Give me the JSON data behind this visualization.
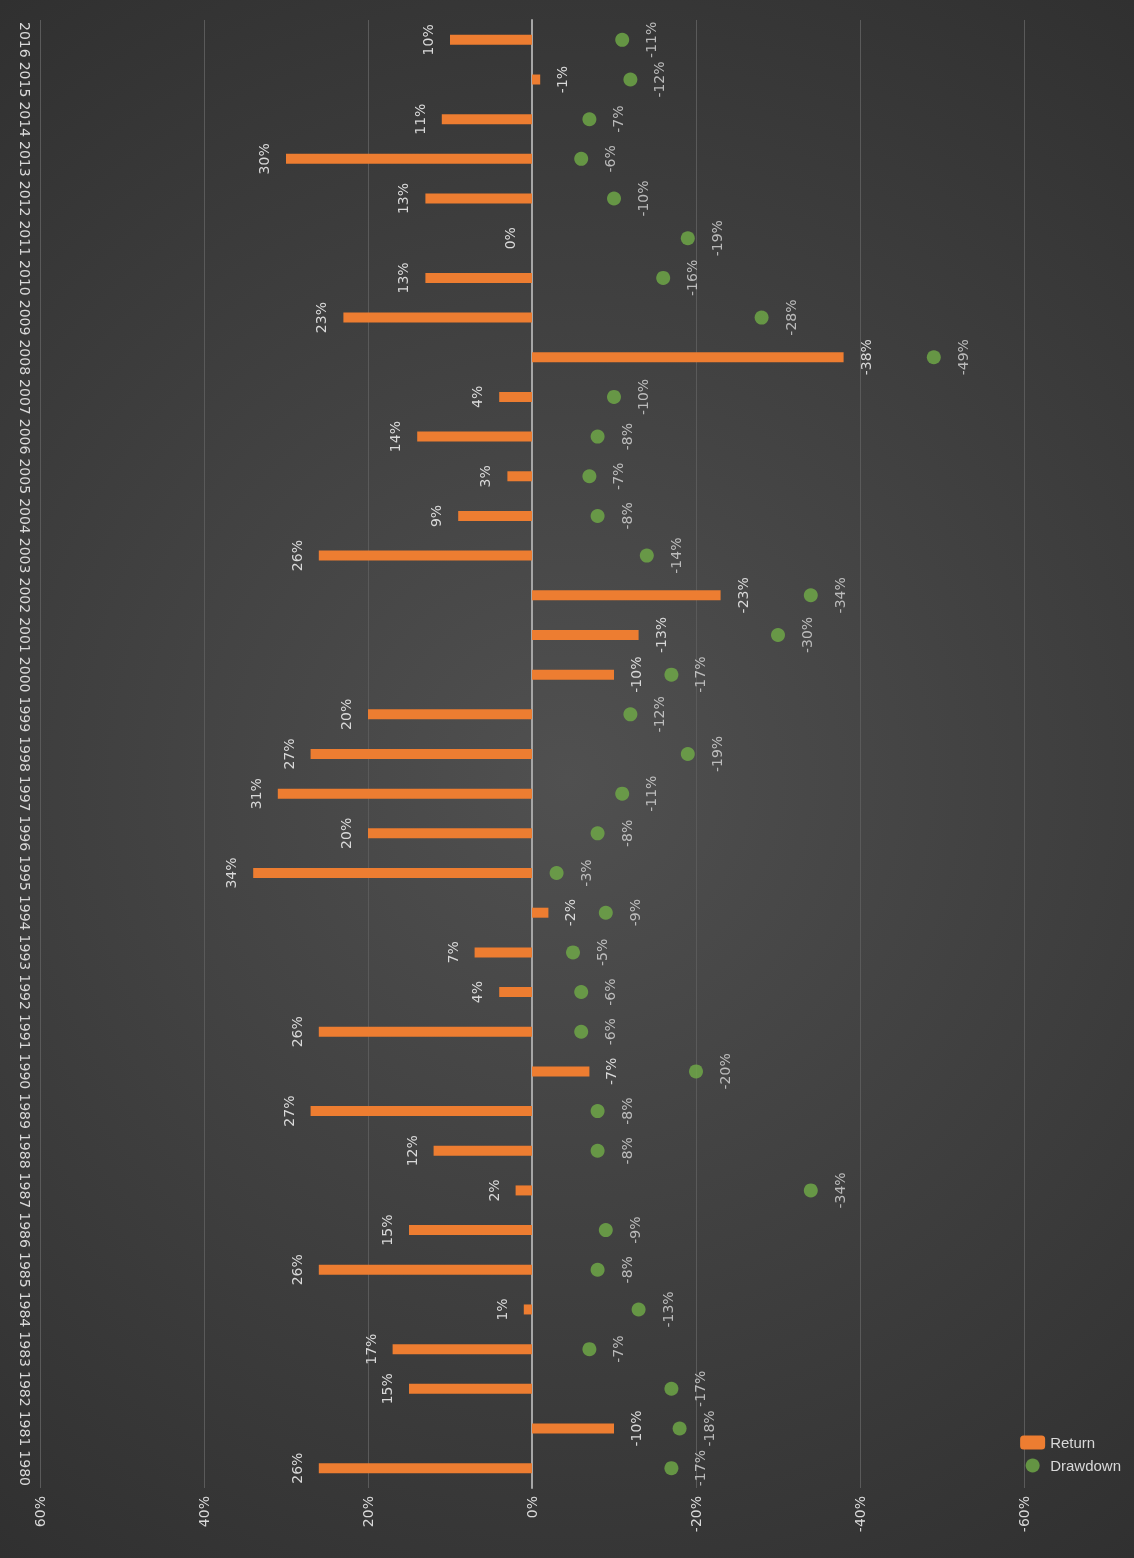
{
  "chart_data": {
    "type": "bar",
    "orientation": "horizontal",
    "categories": [
      "2016",
      "2015",
      "2014",
      "2013",
      "2012",
      "2011",
      "2010",
      "2009",
      "2008",
      "2007",
      "2006",
      "2005",
      "2004",
      "2003",
      "2002",
      "2001",
      "2000",
      "1999",
      "1998",
      "1997",
      "1996",
      "1995",
      "1994",
      "1993",
      "1992",
      "1991",
      "1990",
      "1989",
      "1988",
      "1987",
      "1986",
      "1985",
      "1984",
      "1983",
      "1982",
      "1981",
      "1980"
    ],
    "series": [
      {
        "name": "Return",
        "type": "bar",
        "color": "#ed7d31",
        "values": [
          10,
          -1,
          11,
          30,
          13,
          0,
          13,
          23,
          -38,
          4,
          14,
          3,
          9,
          26,
          -23,
          -13,
          -10,
          20,
          27,
          31,
          20,
          34,
          -2,
          7,
          4,
          26,
          -7,
          27,
          12,
          2,
          15,
          26,
          1,
          17,
          15,
          -10,
          26
        ],
        "value_labels": [
          "10%",
          "-1%",
          "11%",
          "30%",
          "13%",
          "0%",
          "13%",
          "23%",
          "-38%",
          "4%",
          "14%",
          "3%",
          "9%",
          "26%",
          "-23%",
          "-13%",
          "-10%",
          "20%",
          "27%",
          "31%",
          "20%",
          "34%",
          "-2%",
          "7%",
          "4%",
          "26%",
          "-7%",
          "27%",
          "12%",
          "2%",
          "15%",
          "26%",
          "1%",
          "17%",
          "15%",
          "-10%",
          "26%"
        ]
      },
      {
        "name": "Drawdown",
        "type": "scatter",
        "marker": "circle",
        "color": "#70ad47",
        "values": [
          -11,
          -12,
          -7,
          -6,
          -10,
          -19,
          -16,
          -28,
          -49,
          -10,
          -8,
          -7,
          -8,
          -14,
          -34,
          -30,
          -17,
          -12,
          -19,
          -11,
          -8,
          -3,
          -9,
          -5,
          -6,
          -6,
          -20,
          -8,
          -8,
          -34,
          -9,
          -8,
          -13,
          -7,
          -17,
          -18,
          -17
        ],
        "value_labels": [
          "-11%",
          "-12%",
          "-7%",
          "-6%",
          "-10%",
          "-19%",
          "-16%",
          "-28%",
          "-49%",
          "-10%",
          "-8%",
          "-7%",
          "-8%",
          "-14%",
          "-34%",
          "-30%",
          "-17%",
          "-12%",
          "-19%",
          "-11%",
          "-8%",
          "-3%",
          "-9%",
          "-5%",
          "-6%",
          "-6%",
          "-20%",
          "-8%",
          "-8%",
          "-34%",
          "-9%",
          "-8%",
          "-13%",
          "-7%",
          "-17%",
          "-18%",
          "-17%"
        ]
      }
    ],
    "xlim": [
      60,
      -60
    ],
    "xticks": [
      {
        "value": 60,
        "label": "60%"
      },
      {
        "value": 40,
        "label": "40%"
      },
      {
        "value": 20,
        "label": "20%"
      },
      {
        "value": 0,
        "label": "0%"
      },
      {
        "value": -20,
        "label": "-20%"
      },
      {
        "value": -40,
        "label": "-40%"
      },
      {
        "value": -60,
        "label": "-60%"
      }
    ],
    "grid": "x",
    "legend": "bottom right"
  }
}
